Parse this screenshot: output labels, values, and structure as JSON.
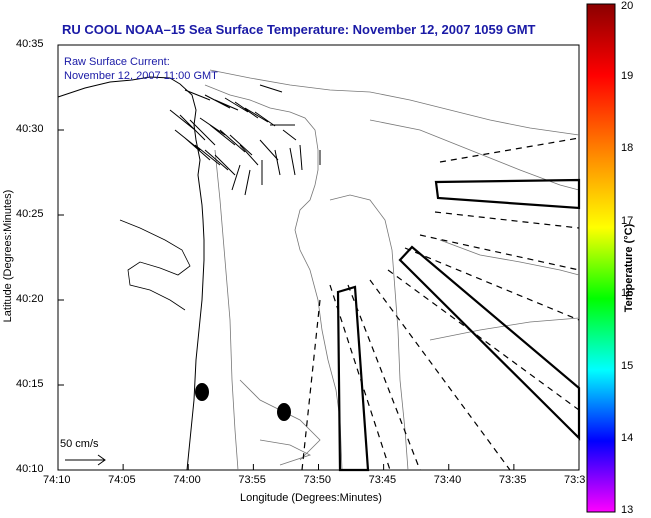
{
  "title": "RU COOL  NOAA–15  Sea Surface Temperature:  November 12, 2007 1059 GMT",
  "current_label_1": "Raw Surface Current:",
  "current_label_2": "November 12, 2007 11:00 GMT",
  "scale_label": "50 cm/s",
  "x_axis": {
    "label": "Longitude (Degrees:Minutes)",
    "ticks": [
      "74:10",
      "74:05",
      "74:00",
      "73:55",
      "73:50",
      "73:45",
      "73:40",
      "73:35",
      "73:3"
    ]
  },
  "y_axis": {
    "label": "Latitude (Degrees:Minutes)",
    "ticks": [
      "40:35",
      "40:30",
      "40:25",
      "40:20",
      "40:15",
      "40:10"
    ]
  },
  "colorbar": {
    "title": "Temperature (°C)",
    "ticks": [
      "20",
      "19",
      "18",
      "17",
      "16",
      "15",
      "14",
      "13"
    ],
    "colors": [
      "#8b0000",
      "#ff0000",
      "#ff8c00",
      "#ffff00",
      "#00ff00",
      "#00ffff",
      "#0000ff",
      "#ff00ff"
    ]
  }
}
